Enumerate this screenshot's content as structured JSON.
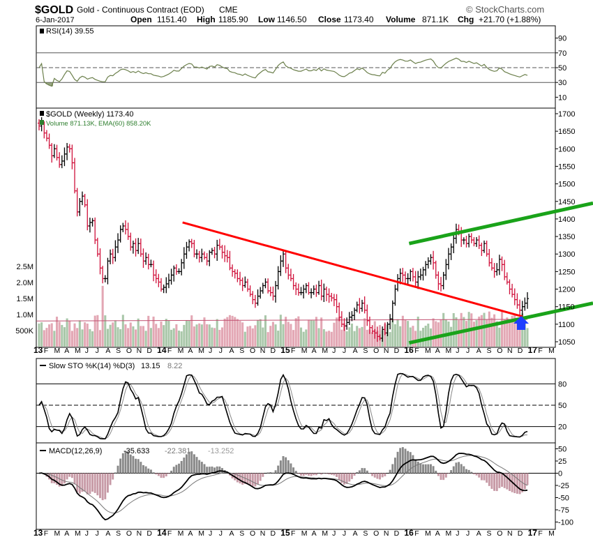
{
  "header": {
    "symbol": "$GOLD",
    "description": "Gold - Continuous Contract (EOD)",
    "exchange": "CME",
    "watermark": "© StockCharts.com",
    "date": "6-Jan-2017",
    "open_label": "Open",
    "open": "1151.40",
    "high_label": "High",
    "high": "1185.90",
    "low_label": "Low",
    "low": "1146.50",
    "close_label": "Close",
    "close": "1173.40",
    "volume_label": "Volume",
    "volume": "871.1K",
    "chg_label": "Chg",
    "chg": "+21.70 (+1.88%)"
  },
  "colors": {
    "up": "#000000",
    "down": "#d0103a",
    "trendline_red": "#ff0000",
    "trendline_green": "#1aa31a",
    "volume_up": "#a9c7a9",
    "volume_down": "#e3a7b4",
    "arrow": "#1f3fff",
    "rsi_line": "#6b7f4b",
    "macd_hist": "#c79aa6"
  },
  "rsi_panel": {
    "legend": "RSI(14) 39.55",
    "ticks": [
      "90",
      "70",
      "50",
      "30",
      "10"
    ]
  },
  "price_panel": {
    "legend_price": "$GOLD (Weekly) 1173.40",
    "legend_volume": "Volume 871.13K, EMA(60) 858.20K",
    "price_ticks": [
      "1700",
      "1650",
      "1600",
      "1550",
      "1500",
      "1450",
      "1400",
      "1350",
      "1300",
      "1250",
      "1200",
      "1150",
      "1100",
      "1050"
    ],
    "volume_ticks": [
      "2.5M",
      "2.0M",
      "1.5M",
      "1.0M",
      "500K"
    ]
  },
  "sto_panel": {
    "legend_label": "Slow STO %K(14) %D(3)",
    "k": "13.15",
    "d": "8.22",
    "ticks": [
      "80",
      "50",
      "20"
    ]
  },
  "macd_panel": {
    "legend_label": "MACD(12,26,9)",
    "macd": "-35.633",
    "signal": "-22.381",
    "hist": "-13.252",
    "ticks": [
      "50",
      "25",
      "0",
      "-25",
      "-50",
      "-75",
      "-100"
    ]
  },
  "time_axis": {
    "labels": [
      "13",
      "F",
      "M",
      "A",
      "M",
      "J",
      "J",
      "A",
      "S",
      "O",
      "N",
      "D",
      "14",
      "F",
      "M",
      "A",
      "M",
      "J",
      "J",
      "A",
      "S",
      "O",
      "N",
      "D",
      "15",
      "F",
      "M",
      "A",
      "M",
      "J",
      "J",
      "A",
      "S",
      "O",
      "N",
      "D",
      "16",
      "F",
      "M",
      "A",
      "M",
      "J",
      "J",
      "A",
      "S",
      "O",
      "N",
      "D",
      "17",
      "F",
      "M"
    ]
  },
  "chart_data": {
    "type": "line",
    "title": "$GOLD Gold - Continuous Contract (EOD) CME",
    "x_unit": "week",
    "x_start": "2013-01",
    "price_close_weekly_approx": [
      1665,
      1670,
      1645,
      1630,
      1610,
      1580,
      1600,
      1575,
      1555,
      1565,
      1585,
      1605,
      1600,
      1560,
      1480,
      1420,
      1450,
      1465,
      1440,
      1380,
      1390,
      1395,
      1340,
      1300,
      1260,
      1230,
      1230,
      1280,
      1300,
      1290,
      1320,
      1340,
      1370,
      1380,
      1370,
      1350,
      1320,
      1330,
      1310,
      1330,
      1300,
      1280,
      1290,
      1270,
      1270,
      1240,
      1230,
      1220,
      1200,
      1205,
      1215,
      1225,
      1240,
      1260,
      1250,
      1250,
      1275,
      1300,
      1320,
      1335,
      1330,
      1300,
      1300,
      1290,
      1300,
      1290,
      1280,
      1305,
      1310,
      1300,
      1325,
      1320,
      1305,
      1295,
      1290,
      1260,
      1250,
      1245,
      1230,
      1225,
      1210,
      1220,
      1200,
      1185,
      1170,
      1160,
      1180,
      1195,
      1210,
      1220,
      1195,
      1190,
      1180,
      1210,
      1250,
      1280,
      1300,
      1260,
      1240,
      1230,
      1210,
      1200,
      1190,
      1190,
      1200,
      1210,
      1190,
      1190,
      1200,
      1190,
      1210,
      1180,
      1200,
      1185,
      1180,
      1175,
      1170,
      1150,
      1120,
      1100,
      1095,
      1105,
      1120,
      1125,
      1140,
      1155,
      1145,
      1160,
      1140,
      1110,
      1090,
      1080,
      1075,
      1065,
      1060,
      1085,
      1075,
      1100,
      1115,
      1160,
      1200,
      1230,
      1245,
      1240,
      1230,
      1230,
      1250,
      1235,
      1220,
      1235,
      1240,
      1255,
      1270,
      1280,
      1290,
      1275,
      1240,
      1215,
      1210,
      1240,
      1270,
      1300,
      1320,
      1345,
      1370,
      1360,
      1340,
      1340,
      1330,
      1350,
      1340,
      1330,
      1340,
      1325,
      1310,
      1330,
      1300,
      1275,
      1260,
      1250,
      1255,
      1285,
      1270,
      1235,
      1220,
      1200,
      1185,
      1170,
      1155,
      1140,
      1150,
      1160,
      1173
    ],
    "trendlines": [
      {
        "color": "red",
        "from": [
          "2014-03",
          1390
        ],
        "to": [
          "2016-12",
          1122
        ]
      },
      {
        "color": "green",
        "from": [
          "2016-01",
          1047
        ],
        "to": [
          "2017-03",
          1160
        ]
      },
      {
        "color": "green",
        "from": [
          "2016-01",
          1330
        ],
        "to": [
          "2017-03",
          1445
        ]
      }
    ],
    "rsi_last": 39.55,
    "sto_k_last": 13.15,
    "sto_d_last": 8.22,
    "macd_last": -35.633,
    "macd_signal_last": -22.381,
    "macd_hist_last": -13.252
  }
}
